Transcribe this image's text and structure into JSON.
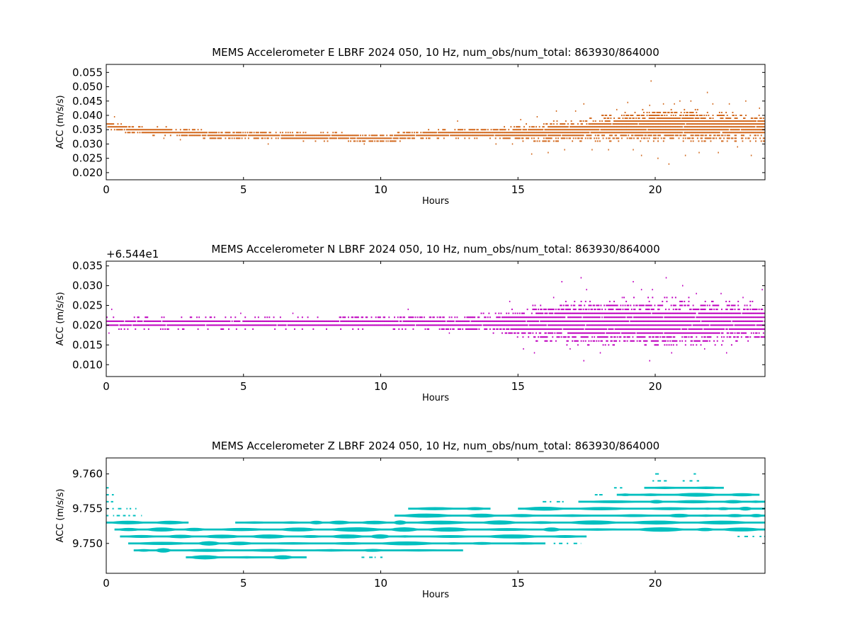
{
  "chart_data": [
    {
      "type": "scatter",
      "title": "MEMS Accelerometer E LBRF 2024 050, 10 Hz, num_obs/num_total: 863930/864000",
      "xlabel": "Hours",
      "ylabel": "ACC (m/s/s)",
      "offset_text": "",
      "xlim": [
        0,
        24
      ],
      "ylim": [
        0.0175,
        0.0578
      ],
      "xticks": [
        0,
        5,
        10,
        15,
        20
      ],
      "yticks": [
        0.02,
        0.025,
        0.03,
        0.035,
        0.04,
        0.045,
        0.05,
        0.055
      ],
      "ytick_labels": [
        "0.020",
        "0.025",
        "0.030",
        "0.035",
        "0.040",
        "0.045",
        "0.050",
        "0.055"
      ],
      "color": "#d2691e",
      "grid": false,
      "series": [
        {
          "baseline": {
            "x": [
              0,
              0.5,
              1,
              2,
              3,
              4,
              5,
              6,
              7,
              8,
              9,
              10,
              11,
              12,
              13,
              14,
              15,
              16,
              17,
              18,
              19,
              20,
              21,
              22,
              23,
              24
            ],
            "y": [
              0.0368,
              0.0355,
              0.0348,
              0.0345,
              0.0338,
              0.0332,
              0.033,
              0.0328,
              0.0327,
              0.0325,
              0.0322,
              0.032,
              0.0328,
              0.0335,
              0.0336,
              0.0337,
              0.0338,
              0.034,
              0.0345,
              0.0355,
              0.036,
              0.0365,
              0.0365,
              0.0362,
              0.036,
              0.0358
            ]
          },
          "spread": {
            "x": [
              0,
              3,
              10,
              14,
              15,
              16,
              17,
              18,
              19,
              20,
              21,
              22,
              23,
              24
            ],
            "y": [
              0.0015,
              0.0017,
              0.0017,
              0.0018,
              0.003,
              0.004,
              0.004,
              0.0045,
              0.0055,
              0.006,
              0.006,
              0.0055,
              0.005,
              0.005
            ]
          },
          "outliers": [
            [
              0.3,
              0.0395
            ],
            [
              2.1,
              0.032
            ],
            [
              2.7,
              0.0315
            ],
            [
              5.9,
              0.03
            ],
            [
              9.4,
              0.03
            ],
            [
              10.2,
              0.031
            ],
            [
              12.8,
              0.038
            ],
            [
              14.2,
              0.03
            ],
            [
              14.8,
              0.03
            ],
            [
              15.1,
              0.0385
            ],
            [
              15.5,
              0.0265
            ],
            [
              15.7,
              0.0395
            ],
            [
              16.1,
              0.027
            ],
            [
              16.4,
              0.0415
            ],
            [
              16.7,
              0.028
            ],
            [
              17.1,
              0.0415
            ],
            [
              17.4,
              0.044
            ],
            [
              17.7,
              0.028
            ],
            [
              18.3,
              0.028
            ],
            [
              18.6,
              0.042
            ],
            [
              19.0,
              0.0445
            ],
            [
              19.2,
              0.028
            ],
            [
              19.5,
              0.026
            ],
            [
              19.8,
              0.0435
            ],
            [
              19.85,
              0.052
            ],
            [
              20.1,
              0.025
            ],
            [
              20.3,
              0.044
            ],
            [
              20.5,
              0.023
            ],
            [
              20.7,
              0.044
            ],
            [
              20.9,
              0.045
            ],
            [
              21.1,
              0.026
            ],
            [
              21.3,
              0.045
            ],
            [
              21.6,
              0.027
            ],
            [
              21.9,
              0.048
            ],
            [
              22.1,
              0.044
            ],
            [
              22.3,
              0.027
            ],
            [
              22.7,
              0.044
            ],
            [
              23.0,
              0.029
            ],
            [
              23.3,
              0.045
            ],
            [
              23.5,
              0.026
            ],
            [
              23.8,
              0.0425
            ]
          ]
        }
      ]
    },
    {
      "type": "scatter",
      "title": "MEMS Accelerometer N LBRF 2024 050, 10 Hz, num_obs/num_total: 863930/864000",
      "xlabel": "Hours",
      "ylabel": "ACC (m/s/s)",
      "offset_text": "+6.544e1",
      "xlim": [
        0,
        24
      ],
      "ylim": [
        0.007,
        0.0362
      ],
      "xticks": [
        0,
        5,
        10,
        15,
        20
      ],
      "yticks": [
        0.01,
        0.015,
        0.02,
        0.025,
        0.03,
        0.035
      ],
      "ytick_labels": [
        "0.010",
        "0.015",
        "0.020",
        "0.025",
        "0.030",
        "0.035"
      ],
      "color": "#bf00bf",
      "grid": false,
      "series": [
        {
          "baseline": {
            "x": [
              0,
              5,
              10,
              14,
              15,
              20,
              24
            ],
            "y": [
              0.0205,
              0.0205,
              0.0206,
              0.0206,
              0.0206,
              0.0206,
              0.0206
            ]
          },
          "spread": {
            "x": [
              0,
              7,
              12,
              14,
              15,
              16,
              17,
              18,
              19,
              20,
              21,
              22,
              23,
              24
            ],
            "y": [
              0.0016,
              0.0017,
              0.002,
              0.0025,
              0.004,
              0.005,
              0.006,
              0.006,
              0.0065,
              0.0065,
              0.0065,
              0.006,
              0.0055,
              0.0055
            ]
          },
          "outliers": [
            [
              0.2,
              0.024
            ],
            [
              0.1,
              0.018
            ],
            [
              4.9,
              0.023
            ],
            [
              6.8,
              0.023
            ],
            [
              11.0,
              0.024
            ],
            [
              12.5,
              0.018
            ],
            [
              14.7,
              0.026
            ],
            [
              15.2,
              0.014
            ],
            [
              15.6,
              0.013
            ],
            [
              16.3,
              0.027
            ],
            [
              16.6,
              0.031
            ],
            [
              16.9,
              0.014
            ],
            [
              17.3,
              0.032
            ],
            [
              17.4,
              0.011
            ],
            [
              17.5,
              0.029
            ],
            [
              18.0,
              0.013
            ],
            [
              18.8,
              0.027
            ],
            [
              19.2,
              0.031
            ],
            [
              19.5,
              0.029
            ],
            [
              19.8,
              0.011
            ],
            [
              19.9,
              0.029
            ],
            [
              20.4,
              0.032
            ],
            [
              20.6,
              0.013
            ],
            [
              21.0,
              0.03
            ],
            [
              21.5,
              0.028
            ],
            [
              21.8,
              0.014
            ],
            [
              22.4,
              0.028
            ],
            [
              22.6,
              0.013
            ],
            [
              23.2,
              0.027
            ],
            [
              23.9,
              0.029
            ]
          ]
        }
      ]
    },
    {
      "type": "scatter",
      "title": "MEMS Accelerometer Z LBRF 2024 050, 10 Hz, num_obs/num_total: 863930/864000",
      "xlabel": "Hours",
      "ylabel": "ACC (m/s/s)",
      "offset_text": "",
      "xlim": [
        0,
        24
      ],
      "ylim": [
        9.7457,
        9.7623
      ],
      "xticks": [
        0,
        5,
        10,
        15,
        20
      ],
      "yticks": [
        9.75,
        9.755,
        9.76
      ],
      "ytick_labels": [
        "9.750",
        "9.755",
        "9.760"
      ],
      "color": "#00bfbf",
      "grid": false,
      "series": [
        {
          "quantized_levels": [
            9.748,
            9.749,
            9.75,
            9.751,
            9.752,
            9.753,
            9.754,
            9.755,
            9.756,
            9.757,
            9.758,
            9.759,
            9.76
          ],
          "level_segments": [
            {
              "y": 9.76,
              "x": [
                [
                  20.0,
                  20.2
                ],
                [
                  21.4,
                  21.5
                ]
              ]
            },
            {
              "y": 9.759,
              "x": [
                [
                  19.9,
                  20.6
                ],
                [
                  21.0,
                  21.6
                ]
              ]
            },
            {
              "y": 9.758,
              "x": [
                [
                  0.0,
                  0.2
                ],
                [
                  18.5,
                  18.8
                ],
                [
                  19.6,
                  22.5
                ]
              ]
            },
            {
              "y": 9.757,
              "x": [
                [
                  0.0,
                  0.3
                ],
                [
                  17.8,
                  18.2
                ],
                [
                  18.6,
                  23.8
                ]
              ]
            },
            {
              "y": 9.756,
              "x": [
                [
                  0.0,
                  0.3
                ],
                [
                  15.9,
                  16.8
                ],
                [
                  17.2,
                  24.0
                ]
              ]
            },
            {
              "y": 9.755,
              "x": [
                [
                  0.0,
                  1.1
                ],
                [
                  11.0,
                  14.0
                ],
                [
                  15.0,
                  24.0
                ]
              ]
            },
            {
              "y": 9.754,
              "x": [
                [
                  0.0,
                  1.3
                ],
                [
                  10.5,
                  24.0
                ]
              ]
            },
            {
              "y": 9.753,
              "x": [
                [
                  0.0,
                  3.0
                ],
                [
                  4.7,
                  24.0
                ]
              ]
            },
            {
              "y": 9.752,
              "x": [
                [
                  0.3,
                  24.0
                ]
              ]
            },
            {
              "y": 9.751,
              "x": [
                [
                  0.5,
                  17.5
                ],
                [
                  23.0,
                  24.0
                ]
              ]
            },
            {
              "y": 9.75,
              "x": [
                [
                  0.8,
                  16.0
                ],
                [
                  16.3,
                  17.3
                ]
              ]
            },
            {
              "y": 9.749,
              "x": [
                [
                  1.0,
                  13.0
                ]
              ]
            },
            {
              "y": 9.748,
              "x": [
                [
                  2.9,
                  7.3
                ],
                [
                  9.3,
                  10.1
                ]
              ]
            }
          ]
        }
      ]
    }
  ]
}
